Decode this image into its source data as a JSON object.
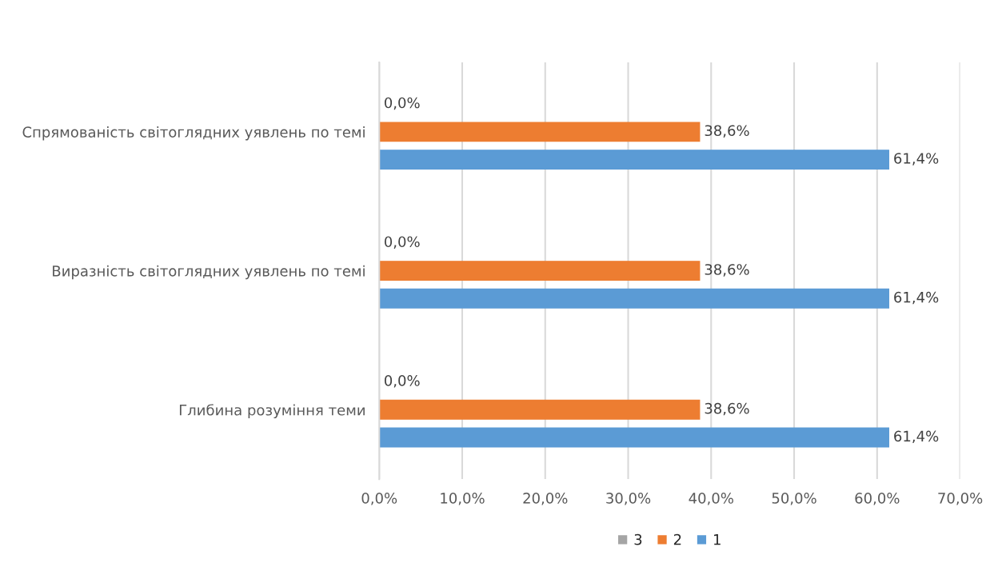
{
  "chart_data": {
    "type": "bar",
    "orientation": "horizontal",
    "categories": [
      "Спрямованість світоглядних уявлень по темі",
      "Виразність світоглядних уявлень по темі",
      "Глибина розуміння теми"
    ],
    "series": [
      {
        "name": "3",
        "color": "#a5a5a5",
        "values": [
          0.0,
          0.0,
          0.0
        ],
        "value_labels": [
          "0,0%",
          "0,0%",
          "0,0%"
        ]
      },
      {
        "name": "2",
        "color": "#ed7d31",
        "values": [
          38.6,
          38.6,
          38.6
        ],
        "value_labels": [
          "38,6%",
          "38,6%",
          "38,6%"
        ]
      },
      {
        "name": "1",
        "color": "#5b9bd5",
        "values": [
          61.4,
          61.4,
          61.4
        ],
        "value_labels": [
          "61,4%",
          "61,4%",
          "61,4%"
        ]
      }
    ],
    "xlim": [
      0,
      70
    ],
    "xticks": [
      {
        "value": 0,
        "label": "0,0%"
      },
      {
        "value": 10,
        "label": "10,0%"
      },
      {
        "value": 20,
        "label": "20,0%"
      },
      {
        "value": 30,
        "label": "30,0%"
      },
      {
        "value": 40,
        "label": "40,0%"
      },
      {
        "value": 50,
        "label": "50,0%"
      },
      {
        "value": 60,
        "label": "60,0%"
      },
      {
        "value": 70,
        "label": "70,0%"
      }
    ],
    "grid": "x",
    "legend": "bottom"
  }
}
